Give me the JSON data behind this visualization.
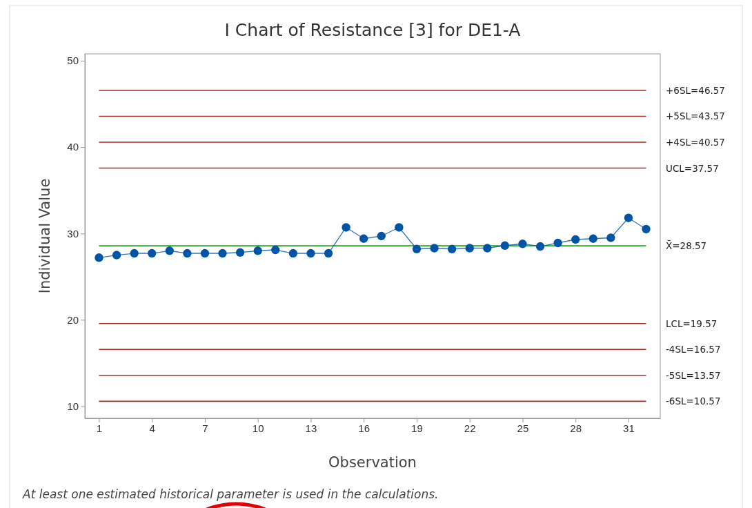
{
  "chart_data": {
    "type": "line",
    "title": "I Chart of Resistance [3] for DE1-A",
    "xlabel": "Observation",
    "ylabel": "Individual Value",
    "x": [
      1,
      2,
      3,
      4,
      5,
      6,
      7,
      8,
      9,
      10,
      11,
      12,
      13,
      14,
      15,
      16,
      17,
      18,
      19,
      20,
      21,
      22,
      23,
      24,
      25,
      26,
      27,
      28,
      29,
      30,
      31,
      32
    ],
    "series": [
      {
        "color": "#0054a6",
        "values": [
          27.2,
          27.5,
          27.7,
          27.7,
          28.0,
          27.7,
          27.7,
          27.7,
          27.8,
          28.0,
          28.1,
          27.7,
          27.7,
          27.7,
          30.7,
          29.4,
          29.7,
          30.7,
          28.2,
          28.3,
          28.2,
          28.3,
          28.3,
          28.6,
          28.8,
          28.5,
          28.9,
          29.3,
          29.4,
          29.5,
          31.8,
          30.5
        ]
      }
    ],
    "xlim": [
      0.2,
      32.8
    ],
    "xticks": [
      1,
      4,
      7,
      10,
      13,
      16,
      19,
      22,
      25,
      28,
      31
    ],
    "ylim": [
      8.6,
      50.8
    ],
    "yticks": [
      10,
      20,
      30,
      40,
      50
    ],
    "marker": "circle",
    "line_style": "solid",
    "grid": false,
    "ref_lines": [
      {
        "axis": "y",
        "value": 46.57,
        "label": "+6SL=46.57",
        "color": "#a52a2a"
      },
      {
        "axis": "y",
        "value": 43.57,
        "label": "+5SL=43.57",
        "color": "#a52a2a"
      },
      {
        "axis": "y",
        "value": 40.57,
        "label": "+4SL=40.57",
        "color": "#a52a2a"
      },
      {
        "axis": "y",
        "value": 37.57,
        "label": "UCL=37.57",
        "color": "#a52a2a"
      },
      {
        "axis": "y",
        "value": 28.57,
        "label": "X̄=28.57",
        "color": "#2e9a2e"
      },
      {
        "axis": "y",
        "value": 19.57,
        "label": "LCL=19.57",
        "color": "#a52a2a"
      },
      {
        "axis": "y",
        "value": 16.57,
        "label": "-4SL=16.57",
        "color": "#a52a2a"
      },
      {
        "axis": "y",
        "value": 13.57,
        "label": "-5SL=13.57",
        "color": "#a52a2a"
      },
      {
        "axis": "y",
        "value": 10.57,
        "label": "-6SL=10.57",
        "color": "#a52a2a"
      }
    ],
    "annotations": [
      "At least one estimated historical parameter is used in the calculations."
    ]
  }
}
